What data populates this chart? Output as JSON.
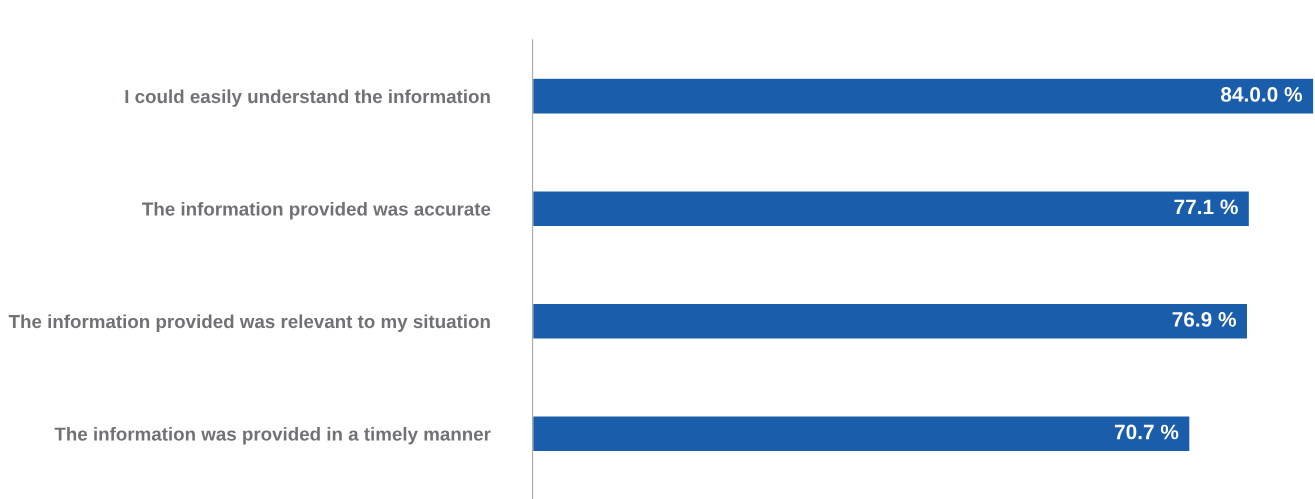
{
  "chart_data": {
    "type": "bar",
    "orientation": "horizontal",
    "categories": [
      "I could easily understand the information",
      "The information provided was accurate",
      "The information provided was relevant to my situation",
      "The information was provided in a timely manner"
    ],
    "values": [
      84.0,
      77.1,
      76.9,
      70.7
    ],
    "value_labels": [
      "84.0.0 %",
      "77.1 %",
      "76.9 %",
      "70.7 %"
    ],
    "color": "#1a5dab",
    "grid": false,
    "legend": false,
    "tick_labels": "y"
  }
}
